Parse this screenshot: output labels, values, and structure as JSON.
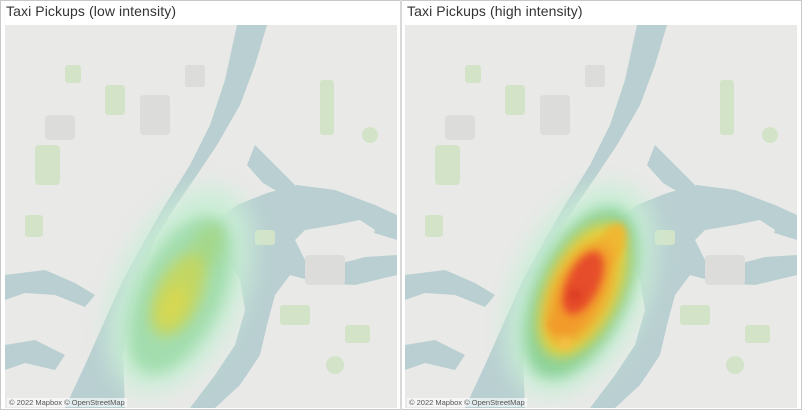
{
  "panels": [
    {
      "title": "Taxi Pickups (low intensity)",
      "attribution": "© 2022 Mapbox © OpenStreetMap",
      "intensity": "low"
    },
    {
      "title": "Taxi Pickups (high intensity)",
      "attribution": "© 2022 Mapbox © OpenStreetMap",
      "intensity": "high"
    }
  ],
  "colors": {
    "land": "#e9e9e8",
    "water": "#b9cfd1",
    "park": "#d3e3c8",
    "heat_low": [
      "#b8e6c8",
      "#8cd29a",
      "#b7d35a",
      "#dcd84e"
    ],
    "heat_high": [
      "#b8e6c8",
      "#8cd29a",
      "#e6d23c",
      "#f29a2a",
      "#e5452a"
    ]
  }
}
